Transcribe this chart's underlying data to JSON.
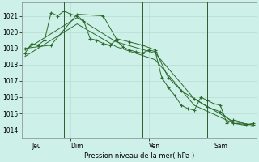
{
  "bg_color": "#cdf0e8",
  "grid_color": "#b8ddd0",
  "line_color": "#2d6a2d",
  "title": "Pression niveau de la mer( hPa )",
  "ylim": [
    1013.5,
    1021.8
  ],
  "yticks": [
    1014,
    1015,
    1016,
    1017,
    1018,
    1019,
    1020,
    1021
  ],
  "day_labels": [
    "Jeu",
    "Dim",
    "Ven",
    "Sam"
  ],
  "total_points": 36,
  "series1_x": [
    0,
    1,
    2,
    3,
    4,
    5,
    6,
    7,
    8,
    9,
    10,
    11,
    12,
    13,
    14,
    15,
    16,
    17,
    18,
    19,
    20,
    21,
    22,
    23,
    24,
    25,
    26,
    27,
    28,
    29,
    30,
    31,
    32,
    33,
    34,
    35
  ],
  "series1_y": [
    1018.7,
    1019.3,
    1019.2,
    1019.5,
    1021.2,
    1021.0,
    1021.3,
    1021.1,
    1021.0,
    1020.7,
    1019.6,
    1019.5,
    1019.3,
    1019.2,
    1019.5,
    1019.1,
    1018.9,
    1018.8,
    1018.7,
    1018.9,
    1018.8,
    1017.2,
    1016.6,
    1016.1,
    1015.5,
    1015.3,
    1015.2,
    1016.0,
    1015.8,
    1015.6,
    1015.5,
    1014.4,
    1014.6,
    1014.5,
    1014.3,
    1014.4
  ],
  "series2_x": [
    0,
    4,
    8,
    12,
    14,
    16,
    18,
    20,
    22,
    24,
    26,
    28,
    30,
    32,
    35
  ],
  "series2_y": [
    1019.0,
    1019.2,
    1021.1,
    1021.0,
    1019.6,
    1019.4,
    1019.2,
    1018.9,
    1017.2,
    1016.4,
    1015.9,
    1015.4,
    1015.1,
    1014.4,
    1014.3
  ],
  "series3_x": [
    0,
    8,
    14,
    20,
    26,
    32,
    35
  ],
  "series3_y": [
    1018.9,
    1020.9,
    1019.4,
    1018.7,
    1015.9,
    1014.5,
    1014.3
  ],
  "series4_x": [
    0,
    8,
    14,
    20,
    26,
    32,
    35
  ],
  "series4_y": [
    1018.5,
    1020.5,
    1019.1,
    1018.3,
    1015.5,
    1014.4,
    1014.2
  ]
}
